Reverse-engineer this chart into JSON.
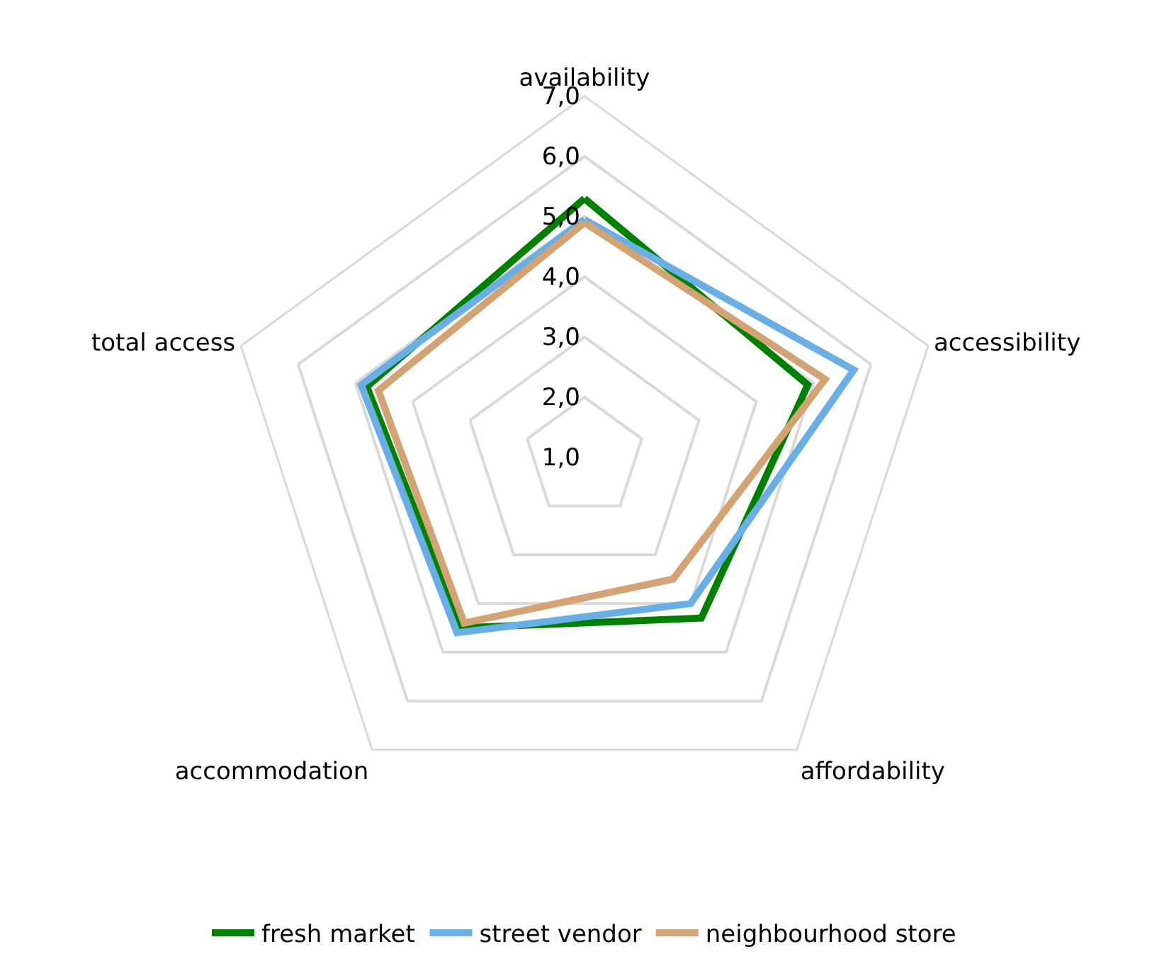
{
  "chart_data": {
    "type": "radar",
    "categories": [
      "availability",
      "accessibility",
      "affordability",
      "accommodation",
      "total access"
    ],
    "series": [
      {
        "name": "fresh market",
        "color": "#008000",
        "values": [
          5.3,
          4.9,
          4.3,
          4.5,
          4.8
        ]
      },
      {
        "name": "street vendor",
        "color": "#6aaee6",
        "values": [
          4.95,
          5.7,
          4.0,
          4.6,
          4.9
        ]
      },
      {
        "name": "neighbourhood store",
        "color": "#d4a373",
        "values": [
          4.9,
          5.2,
          3.5,
          4.4,
          4.6
        ]
      }
    ],
    "ylim": [
      1,
      7
    ],
    "yticks": [
      {
        "value": 1,
        "label": "1,0"
      },
      {
        "value": 2,
        "label": "2,0"
      },
      {
        "value": 3,
        "label": "3,0"
      },
      {
        "value": 4,
        "label": "4,0"
      },
      {
        "value": 5,
        "label": "5,0"
      },
      {
        "value": 6,
        "label": "6,0"
      },
      {
        "value": 7,
        "label": "7,0"
      }
    ],
    "grid": true,
    "legend": "bottom",
    "marker": "none",
    "line_style": "solid"
  }
}
